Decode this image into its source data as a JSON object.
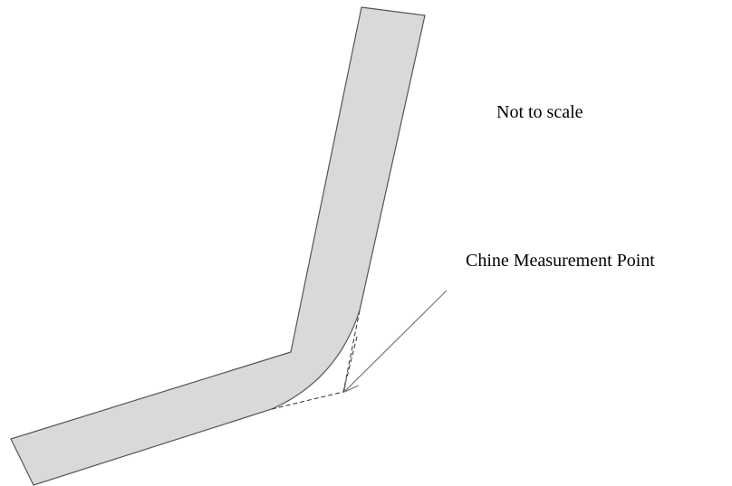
{
  "labels": {
    "scale_note": "Not to scale",
    "measurement_point": "Chine Measurement Point"
  },
  "colors": {
    "shape_fill": "#d9d9d9",
    "outline": "#555555",
    "construction_lines": "#333333",
    "leader_line": "#777777",
    "text": "#000000"
  }
}
